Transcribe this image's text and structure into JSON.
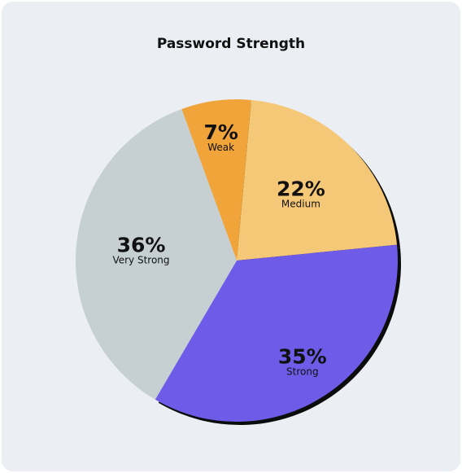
{
  "chart_data": {
    "type": "pie",
    "title": "Password Strength",
    "categories": [
      "Weak",
      "Medium",
      "Strong",
      "Very Strong"
    ],
    "values": [
      7,
      22,
      35,
      36
    ],
    "value_labels": [
      "7%",
      "22%",
      "35%",
      "36%"
    ],
    "colors": [
      "#f0a43a",
      "#f5c877",
      "#6e5ce8",
      "#c6d0d3"
    ],
    "legend": "none"
  }
}
